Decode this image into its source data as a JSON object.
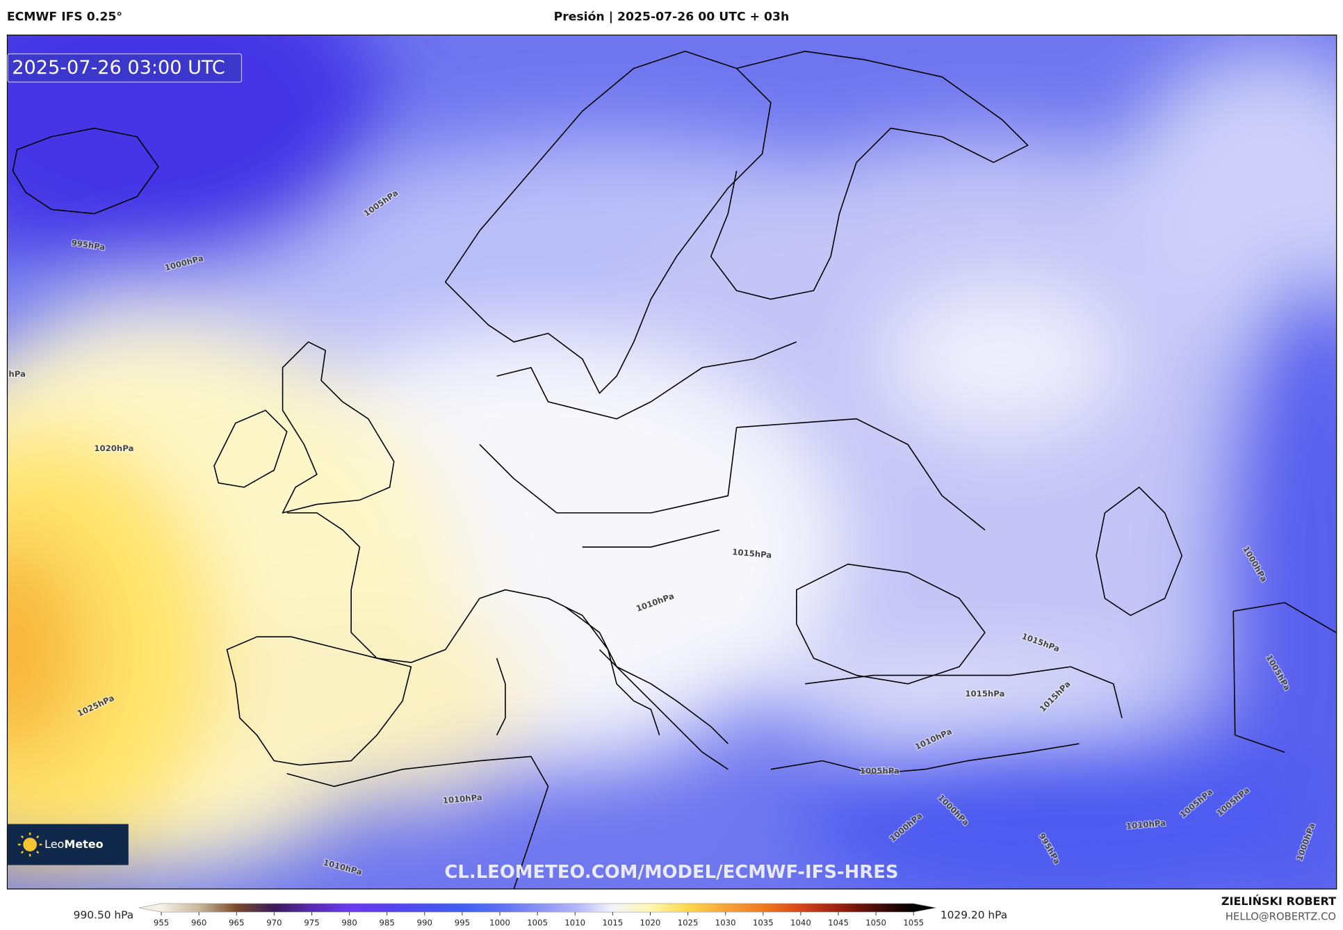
{
  "header": {
    "model": "ECMWF IFS 0.25°",
    "title": "Presión | 2025-07-26 00 UTC + 03h"
  },
  "map": {
    "valid_time": "2025-07-26 03:00 UTC",
    "isobar_labels": [
      "995hPa",
      "1000hPa",
      "1005hPa",
      "hPa",
      "1020hPa",
      "1025hPa",
      "1015hPa",
      "1010hPa",
      "1015hPa",
      "1015hPa",
      "1015hPa",
      "1010hPa",
      "1005hPa",
      "1010hPa",
      "1000hPa",
      "1000hPa",
      "995hPa",
      "1010hPa",
      "1005hPa",
      "1005hPa",
      "1000hPa",
      "1005hPa",
      "1000hPa",
      "1010hPa"
    ],
    "watermark": "CL.LEOMETEO.COM/MODEL/ECMWF-IFS-HRES",
    "logo": {
      "name": "Leo",
      "name_bold": "Meteo"
    }
  },
  "colorbar": {
    "min_label": "990.50 hPa",
    "max_label": "1029.20 hPa",
    "range": [
      952,
      1058
    ],
    "ticks": [
      955,
      960,
      965,
      970,
      975,
      980,
      985,
      990,
      995,
      1000,
      1005,
      1010,
      1015,
      1020,
      1025,
      1030,
      1035,
      1040,
      1045,
      1050,
      1055
    ],
    "colors": [
      "#f5f0e6",
      "#c8b89a",
      "#7a4a2a",
      "#3a1a5a",
      "#5a2ab0",
      "#6a3af0",
      "#5a40f0",
      "#4a50f0",
      "#3f5ff2",
      "#5a70f4",
      "#8890f6",
      "#b0b4f8",
      "#f4f4fb",
      "#fff6b0",
      "#ffd84a",
      "#f7a43a",
      "#ef7a1f",
      "#d6451a",
      "#9a2010",
      "#4a0c08",
      "#000000"
    ]
  },
  "footer": {
    "author": "ZIELIŃSKI ROBERT",
    "contact": "HELLO@ROBERTZ.CO"
  }
}
